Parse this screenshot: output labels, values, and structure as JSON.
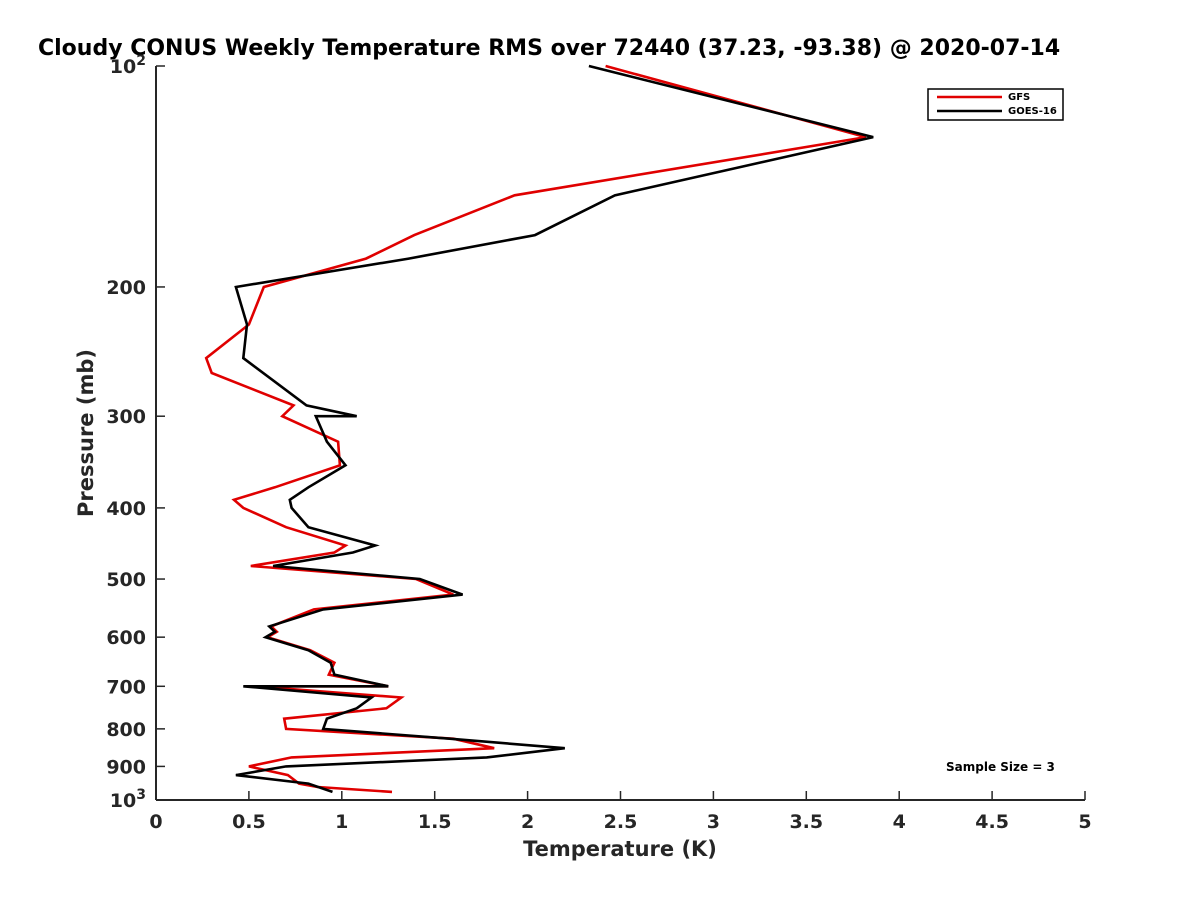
{
  "chart_data": {
    "type": "line",
    "title": "Cloudy CONUS Weekly Temperature RMS over 72440 (37.23, -93.38) @ 2020-07-14",
    "xlabel": "Temperature (K)",
    "ylabel": "Pressure (mb)",
    "xlim": [
      0,
      5
    ],
    "ylim": [
      100,
      1000
    ],
    "y_scale": "log",
    "y_reversed": true,
    "grid": false,
    "legend_position": "top-right",
    "x_ticks": [
      0,
      0.5,
      1,
      1.5,
      2,
      2.5,
      3,
      3.5,
      4,
      4.5,
      5
    ],
    "x_tick_labels": [
      "0",
      "0.5",
      "1",
      "1.5",
      "2",
      "2.5",
      "3",
      "3.5",
      "4",
      "4.5",
      "5"
    ],
    "y_ticks": [
      100,
      200,
      300,
      400,
      500,
      600,
      700,
      800,
      900,
      1000
    ],
    "y_tick_labels": [
      {
        "base": "10",
        "exp": "2"
      },
      {
        "base": "200",
        "exp": ""
      },
      {
        "base": "300",
        "exp": ""
      },
      {
        "base": "400",
        "exp": ""
      },
      {
        "base": "500",
        "exp": ""
      },
      {
        "base": "600",
        "exp": ""
      },
      {
        "base": "700",
        "exp": ""
      },
      {
        "base": "800",
        "exp": ""
      },
      {
        "base": "900",
        "exp": ""
      },
      {
        "base": "10",
        "exp": "3"
      }
    ],
    "annotation": "Sample Size = 3",
    "series": [
      {
        "name": "GFS",
        "color": "#e00000",
        "points": [
          [
            2.42,
            100
          ],
          [
            3.82,
            125
          ],
          [
            1.93,
            150
          ],
          [
            1.39,
            170
          ],
          [
            1.13,
            183
          ],
          [
            0.58,
            200
          ],
          [
            0.5,
            225
          ],
          [
            0.27,
            250
          ],
          [
            0.3,
            262
          ],
          [
            0.74,
            290
          ],
          [
            0.68,
            300
          ],
          [
            0.98,
            325
          ],
          [
            0.99,
            350
          ],
          [
            0.64,
            375
          ],
          [
            0.42,
            390
          ],
          [
            0.47,
            400
          ],
          [
            0.7,
            425
          ],
          [
            1.02,
            450
          ],
          [
            0.96,
            460
          ],
          [
            0.51,
            480
          ],
          [
            1.4,
            500
          ],
          [
            1.6,
            525
          ],
          [
            0.85,
            550
          ],
          [
            0.62,
            580
          ],
          [
            0.65,
            590
          ],
          [
            0.6,
            600
          ],
          [
            0.83,
            625
          ],
          [
            0.96,
            650
          ],
          [
            0.93,
            675
          ],
          [
            1.25,
            700
          ],
          [
            0.53,
            700
          ],
          [
            1.32,
            725
          ],
          [
            1.24,
            750
          ],
          [
            0.69,
            775
          ],
          [
            0.7,
            800
          ],
          [
            1.6,
            825
          ],
          [
            1.82,
            850
          ],
          [
            0.73,
            875
          ],
          [
            0.5,
            900
          ],
          [
            0.71,
            925
          ],
          [
            0.77,
            950
          ],
          [
            0.87,
            960
          ],
          [
            1.27,
            975
          ]
        ]
      },
      {
        "name": "GOES-16",
        "color": "#000000",
        "points": [
          [
            2.33,
            100
          ],
          [
            3.86,
            125
          ],
          [
            2.47,
            150
          ],
          [
            2.04,
            170
          ],
          [
            1.36,
            183
          ],
          [
            0.43,
            200
          ],
          [
            0.49,
            225
          ],
          [
            0.47,
            250
          ],
          [
            0.81,
            290
          ],
          [
            1.08,
            300
          ],
          [
            0.86,
            300
          ],
          [
            0.92,
            325
          ],
          [
            1.02,
            350
          ],
          [
            0.82,
            375
          ],
          [
            0.72,
            390
          ],
          [
            0.73,
            400
          ],
          [
            0.82,
            425
          ],
          [
            1.18,
            450
          ],
          [
            1.06,
            460
          ],
          [
            0.63,
            480
          ],
          [
            1.42,
            500
          ],
          [
            1.65,
            525
          ],
          [
            0.9,
            550
          ],
          [
            0.61,
            580
          ],
          [
            0.64,
            590
          ],
          [
            0.59,
            600
          ],
          [
            0.82,
            625
          ],
          [
            0.94,
            650
          ],
          [
            0.96,
            675
          ],
          [
            1.25,
            700
          ],
          [
            0.47,
            700
          ],
          [
            1.16,
            725
          ],
          [
            1.08,
            750
          ],
          [
            0.92,
            775
          ],
          [
            0.9,
            800
          ],
          [
            1.58,
            825
          ],
          [
            2.2,
            850
          ],
          [
            1.78,
            875
          ],
          [
            0.7,
            900
          ],
          [
            0.43,
            925
          ],
          [
            0.82,
            950
          ],
          [
            0.95,
            975
          ]
        ]
      }
    ]
  }
}
